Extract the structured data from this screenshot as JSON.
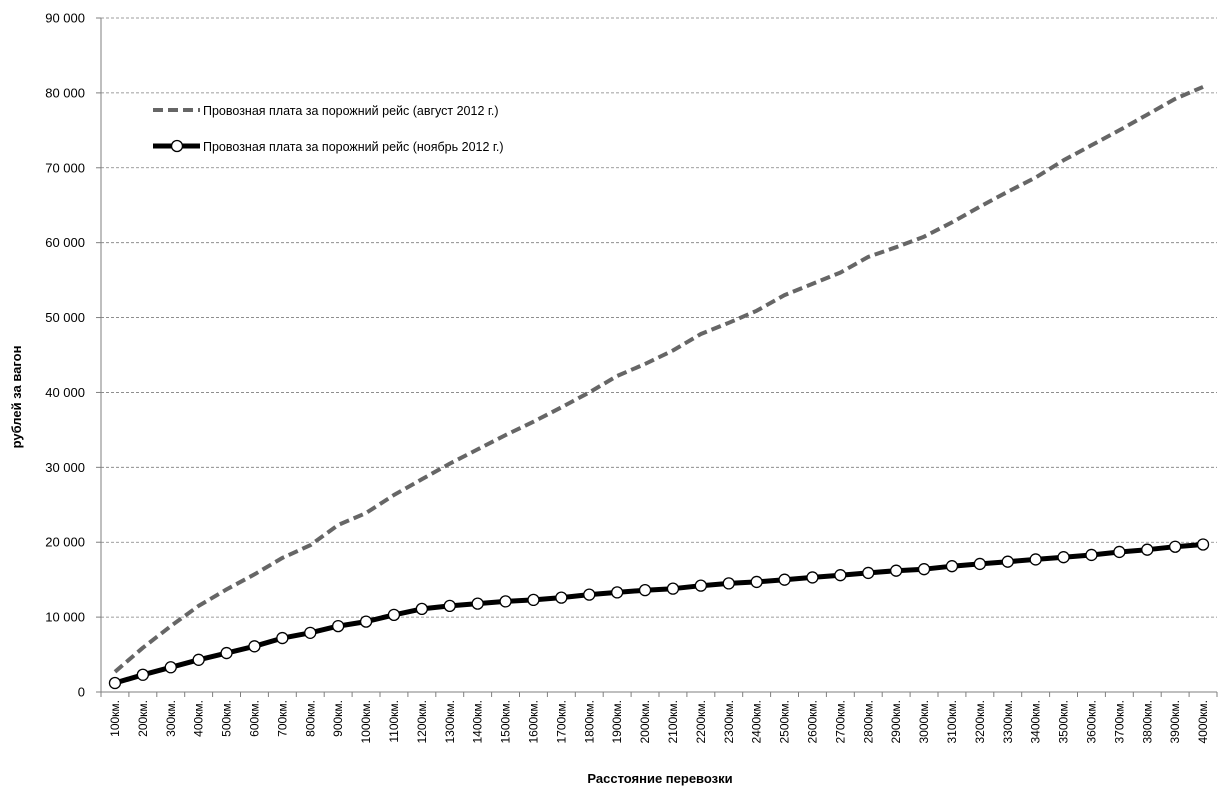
{
  "chart_data": {
    "type": "line",
    "title": "",
    "xlabel": "Расстояние  перевозки",
    "ylabel": "рублей за вагон",
    "ylim": [
      0,
      90000
    ],
    "yticks": [
      0,
      10000,
      20000,
      30000,
      40000,
      50000,
      60000,
      70000,
      80000,
      90000
    ],
    "ytick_labels": [
      "0",
      "10 000",
      "20 000",
      "30 000",
      "40 000",
      "50 000",
      "60 000",
      "70 000",
      "80 000",
      "90 000"
    ],
    "grid": "horizontal dashed",
    "legend_position": "top-left",
    "categories": [
      "100км.",
      "200км.",
      "300км.",
      "400км.",
      "500км.",
      "600км.",
      "700км.",
      "800км.",
      "900км.",
      "1000км.",
      "1100км.",
      "1200км.",
      "1300км.",
      "1400км.",
      "1500км.",
      "1600км.",
      "1700км.",
      "1800км.",
      "1900км.",
      "2000км.",
      "2100км.",
      "2200км.",
      "2300км.",
      "2400км.",
      "2500км.",
      "2600км.",
      "2700км.",
      "2800км.",
      "2900км.",
      "3000км.",
      "3100км.",
      "3200км.",
      "3300км.",
      "3400км.",
      "3500км.",
      "3600км.",
      "3700км.",
      "3800км.",
      "3900км.",
      "4000км."
    ],
    "series": [
      {
        "name": "Провозная плата за порожний рейс (август 2012 г.)",
        "color": "#666666",
        "style": "dashed",
        "values": [
          2700,
          5900,
          8800,
          11500,
          13700,
          15700,
          17900,
          19600,
          22300,
          23900,
          26300,
          28400,
          30500,
          32400,
          34300,
          36100,
          38000,
          40000,
          42200,
          43800,
          45600,
          47800,
          49300,
          50900,
          53000,
          54500,
          56000,
          58100,
          59400,
          60800,
          62700,
          64800,
          66800,
          68700,
          71000,
          73000,
          75000,
          77100,
          79200,
          80800
        ]
      },
      {
        "name": "Провозная плата за порожний рейс (ноябрь 2012 г.)",
        "color": "#000000",
        "style": "solid-markers",
        "values": [
          1200,
          2300,
          3300,
          4300,
          5200,
          6100,
          7200,
          7900,
          8800,
          9400,
          10300,
          11100,
          11500,
          11800,
          12100,
          12300,
          12600,
          13000,
          13300,
          13600,
          13800,
          14200,
          14500,
          14700,
          15000,
          15300,
          15600,
          15900,
          16200,
          16400,
          16800,
          17100,
          17400,
          17700,
          18000,
          18300,
          18700,
          19000,
          19400,
          19700
        ]
      }
    ]
  }
}
